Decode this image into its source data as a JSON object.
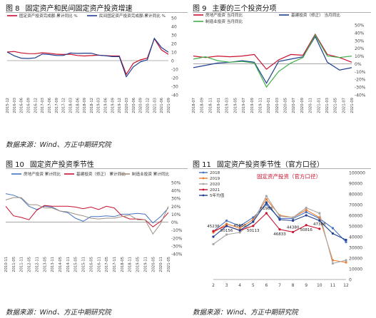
{
  "figures": [
    {
      "number": "图 8",
      "title": "固定资产和民间固定资产投资增速",
      "source": "数据来源：Wind、方正中期研究院"
    },
    {
      "number": "图 9",
      "title": "主要的三个投资分项",
      "source": ""
    },
    {
      "number": "图 10",
      "title": "固定资产投资季节性",
      "source": "数据来源：Wind、方正中期研究院"
    },
    {
      "number": "图 11",
      "title": "固定资产投资季节性（官方口径）",
      "source": "数据来源：Wind、方正中期研究院"
    }
  ],
  "source_text": "数据来源：Wind、方正中期研究院",
  "colors": {
    "red": "#c8102e",
    "navy": "#1f3f8f",
    "green": "#41b04a",
    "blue": "#4472c4",
    "orange": "#ed7d31",
    "gray": "#a5a5a5",
    "gold": "#ffc000",
    "light_blue": "#5b9bd5"
  },
  "chart_data": [
    {
      "id": "fig8",
      "type": "line",
      "x": [
        "2015-12",
        "2016-03",
        "2016-06",
        "2016-09",
        "2016-12",
        "2017-03",
        "2017-06",
        "2017-09",
        "2017-12",
        "2018-03",
        "2018-06",
        "2018-09",
        "2018-12",
        "2019-03",
        "2019-06",
        "2019-09",
        "2019-12",
        "2020-03",
        "2020-06",
        "2020-09",
        "2020-12",
        "2021-03",
        "2021-06",
        "2021-09"
      ],
      "x_ticks": [
        "2015-12",
        "2016-03",
        "2016-06",
        "2016-09",
        "2016-12",
        "2017-03",
        "2017-06",
        "2017-09",
        "2017-12",
        "2018-03",
        "2018-06",
        "2018-09",
        "2018-12",
        "2019-03",
        "2019-06",
        "2019-09",
        "2019-12",
        "2020-03",
        "2020-06",
        "2020-09",
        "2020-12",
        "2021-03",
        "2021-06",
        "2021-09"
      ],
      "ylim": [
        -40,
        50
      ],
      "y_ticks": [
        -40,
        -30,
        -20,
        -10,
        0,
        10,
        20,
        30,
        40,
        50
      ],
      "series": [
        {
          "name": "固定资产投资完成额:累计同比 %",
          "color": "#c8102e",
          "values": [
            10,
            10.7,
            9,
            8.2,
            8.1,
            9.2,
            8.6,
            7.5,
            7.2,
            7.5,
            6.0,
            5.4,
            5.9,
            6.3,
            5.8,
            5.4,
            5.4,
            -16.1,
            -3.1,
            0.8,
            2.9,
            25.6,
            12.6,
            7.3
          ]
        },
        {
          "name": "民间固定资产投资完成额:累计同比 %",
          "color": "#1f3f8f",
          "values": [
            10.1,
            5.7,
            2.8,
            2.5,
            3.2,
            7.7,
            7.2,
            6.0,
            6.0,
            8.9,
            8.4,
            8.7,
            8.7,
            6.4,
            5.7,
            4.7,
            4.7,
            -18.8,
            -7.3,
            -1.5,
            1.0,
            26.0,
            15.4,
            9.8
          ]
        }
      ]
    },
    {
      "id": "fig9",
      "type": "line",
      "x": [
        "2018-07",
        "2018-10",
        "2019-01",
        "2019-04",
        "2019-07",
        "2019-10",
        "2020-01",
        "2020-04",
        "2020-07",
        "2020-10",
        "2021-01",
        "2021-04",
        "2021-07",
        "2021-09"
      ],
      "x_ticks": [
        "2018-07",
        "2018-09",
        "2018-11",
        "2019-01",
        "2019-03",
        "2019-05",
        "2019-07",
        "2019-09",
        "2019-11",
        "2020-01",
        "2020-03",
        "2020-05",
        "2020-07",
        "2020-09",
        "2020-11",
        "2021-01",
        "2021-03",
        "2021-05",
        "2021-07",
        "2021-09"
      ],
      "ylim": [
        -40,
        50
      ],
      "y_ticks": [
        -40,
        -30,
        -20,
        -10,
        0,
        10,
        20,
        30,
        40,
        50
      ],
      "series": [
        {
          "name": "房地产投资 当月同比",
          "color": "#c8102e",
          "values": [
            10,
            8,
            10,
            9,
            10,
            12,
            -7,
            5,
            12,
            11,
            38,
            12,
            8,
            2
          ]
        },
        {
          "name": "基建投资（修正） 当月同比",
          "color": "#1f3f8f",
          "values": [
            -5,
            -2,
            1,
            2,
            4,
            2,
            -25,
            3,
            6,
            9,
            35,
            2,
            -8,
            -5
          ]
        },
        {
          "name": "制造业投资 当月同比",
          "color": "#41b04a",
          "values": [
            6,
            9,
            4,
            2,
            3,
            1,
            -30,
            -10,
            1,
            8,
            37,
            10,
            8,
            10
          ]
        }
      ]
    },
    {
      "id": "fig10",
      "type": "line",
      "x": [
        "2010-11",
        "2011-05",
        "2011-11",
        "2012-05",
        "2012-11",
        "2013-05",
        "2013-11",
        "2014-05",
        "2014-11",
        "2015-05",
        "2015-11",
        "2016-05",
        "2016-11",
        "2017-05",
        "2017-11",
        "2018-05",
        "2018-11",
        "2019-05",
        "2019-11",
        "2020-05",
        "2020-11",
        "2021-05"
      ],
      "x_ticks": [
        "2010-11",
        "2011-05",
        "2011-11",
        "2012-05",
        "2012-11",
        "2013-05",
        "2013-11",
        "2014-05",
        "2014-11",
        "2015-05",
        "2015-11",
        "2016-05",
        "2016-11",
        "2017-05",
        "2017-11",
        "2018-05",
        "2018-11",
        "2019-05",
        "2019-11",
        "2020-05",
        "2020-11",
        "2021-05"
      ],
      "ylim": [
        -40,
        50
      ],
      "y_ticks": [
        -40,
        -30,
        -20,
        -10,
        0,
        10,
        20,
        30,
        40,
        50
      ],
      "series": [
        {
          "name": "房地产投资 累计同比",
          "color": "#4472c4",
          "values": [
            36,
            34,
            30,
            20,
            16,
            20,
            19,
            14,
            12,
            5,
            1,
            7,
            7,
            8,
            7,
            10,
            10,
            11,
            10,
            -1,
            7,
            18
          ]
        },
        {
          "name": "基建投资（修正） 累计同比",
          "color": "#c8102e",
          "values": [
            20,
            8,
            6,
            3,
            15,
            21,
            20,
            20,
            20,
            19,
            17,
            19,
            16,
            20,
            18,
            8,
            4,
            4,
            3,
            -6,
            1,
            12
          ]
        },
        {
          "name": "制造业投资 累计同比",
          "color": "#a09080",
          "values": [
            28,
            31,
            31,
            22,
            22,
            18,
            18,
            14,
            13,
            10,
            8,
            5,
            4,
            5,
            5,
            7,
            9,
            3,
            3,
            -15,
            -2,
            20
          ]
        }
      ]
    },
    {
      "id": "fig11",
      "type": "line",
      "title": "固定资产投资（官方口径）",
      "x": [
        2,
        3,
        4,
        5,
        6,
        7,
        8,
        9,
        10,
        11,
        12
      ],
      "ylim": [
        0,
        100000
      ],
      "y_ticks": [
        0,
        10000,
        20000,
        30000,
        40000,
        50000,
        60000,
        70000,
        80000,
        90000,
        100000
      ],
      "data_labels": [
        {
          "x": 2,
          "value": 45236,
          "text": "45236"
        },
        {
          "x": 3,
          "value": 50156,
          "text": "50156"
        },
        {
          "x": 4,
          "value": 45880,
          "text": "45880"
        },
        {
          "x": 5,
          "value": 50113,
          "text": "50113"
        },
        {
          "x": 6,
          "value": 61983,
          "text": "61983"
        },
        {
          "x": 7,
          "value": 46833,
          "text": "46833"
        },
        {
          "x": 8,
          "value": 44380,
          "text": "44380"
        },
        {
          "x": 9,
          "value": 50816,
          "text": "50816"
        },
        {
          "x": 10,
          "value": 47388,
          "text": "47388"
        }
      ],
      "series": [
        {
          "name": "2018",
          "color": "#4472c4",
          "values": [
            45000,
            55000,
            50000,
            58000,
            70000,
            57000,
            57000,
            63000,
            57000,
            48000,
            35000
          ]
        },
        {
          "name": "2019",
          "color": "#ed7d31",
          "values": [
            44000,
            52000,
            48000,
            56000,
            75000,
            60000,
            58000,
            65000,
            58000,
            18000,
            16000
          ]
        },
        {
          "name": "2020",
          "color": "#a5a5a5",
          "values": [
            33000,
            42000,
            44000,
            54000,
            78000,
            59000,
            58000,
            67000,
            62000,
            15000,
            18000
          ]
        },
        {
          "name": "2021",
          "color": "#c8102e",
          "values": [
            45236,
            50156,
            45880,
            50113,
            61983,
            46833,
            44380,
            50816,
            47388,
            null,
            null
          ]
        },
        {
          "name": "5年均值",
          "color": "#1f3f8f",
          "values": [
            40000,
            50000,
            46000,
            54000,
            72000,
            56000,
            55000,
            60000,
            55000,
            43000,
            37000
          ]
        }
      ]
    }
  ]
}
